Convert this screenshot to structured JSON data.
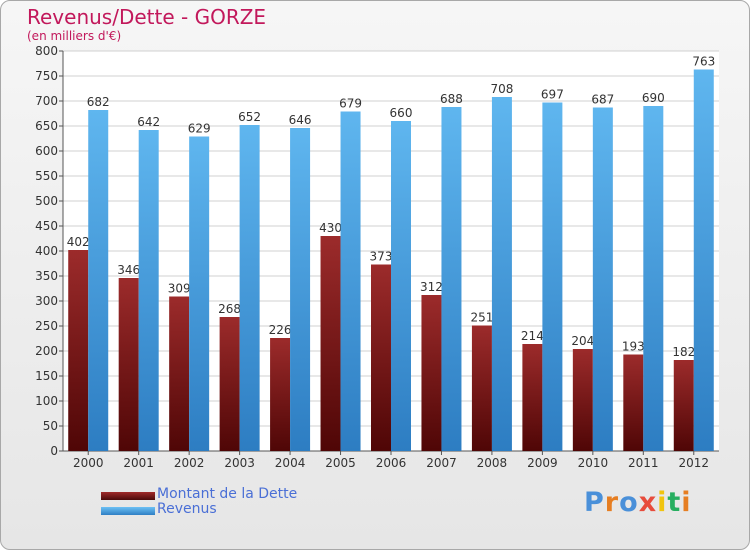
{
  "header": {
    "title": "Revenus/Dette - GORZE",
    "subtitle": "(en milliers d'€)"
  },
  "legend": [
    {
      "label": "Montant de la Dette",
      "color": "#7a1a1a"
    },
    {
      "label": "Revenus",
      "color": "#4aa3e6"
    }
  ],
  "logo": {
    "text": "Proxiti",
    "letter_colors": [
      "#4a90d9",
      "#e67e22",
      "#4a90d9",
      "#e74c3c",
      "#f1c40f",
      "#27ae60",
      "#e67e22"
    ]
  },
  "chart_data": {
    "type": "bar",
    "title": "Revenus/Dette - GORZE",
    "ylabel": "(en milliers d'€)",
    "xlabel": "",
    "ylim": [
      0,
      800
    ],
    "yticks": [
      0,
      50,
      100,
      150,
      200,
      250,
      300,
      350,
      400,
      450,
      500,
      550,
      600,
      650,
      700,
      750,
      800
    ],
    "grid": true,
    "legend_position": "bottom-left",
    "categories": [
      "2000",
      "2001",
      "2002",
      "2003",
      "2004",
      "2005",
      "2006",
      "2007",
      "2008",
      "2009",
      "2010",
      "2011",
      "2012"
    ],
    "series": [
      {
        "name": "Montant de la Dette",
        "color": "#7a1a1a",
        "values": [
          402,
          346,
          309,
          268,
          226,
          430,
          373,
          312,
          251,
          214,
          204,
          193,
          182
        ]
      },
      {
        "name": "Revenus",
        "color": "#4aa3e6",
        "values": [
          682,
          642,
          629,
          652,
          646,
          679,
          660,
          688,
          708,
          697,
          687,
          690,
          763
        ]
      }
    ]
  }
}
